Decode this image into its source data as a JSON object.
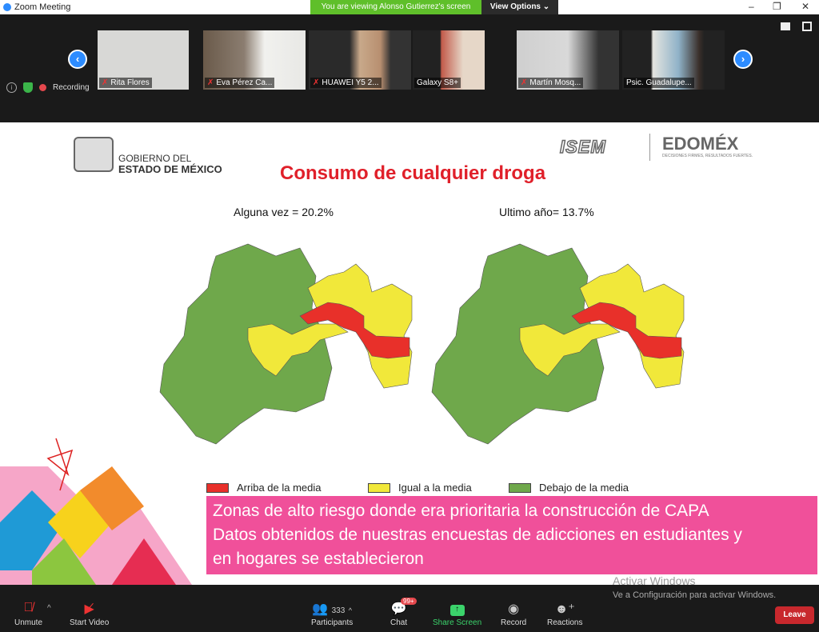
{
  "window": {
    "title": "Zoom Meeting",
    "banner": "You are viewing Alonso Gutierrez's screen",
    "view_options": "View Options ⌄",
    "minimize": "–",
    "restore": "❐",
    "close": "✕"
  },
  "participants_strip": [
    {
      "name": "Rita Flores",
      "muted": true
    },
    {
      "name": "Eva Pérez Ca...",
      "muted": true
    },
    {
      "name": "HUAWEI Y5 2...",
      "muted": true
    },
    {
      "name": "Galaxy S8+",
      "muted": false
    },
    {
      "name": "Martín Mosq...",
      "muted": true
    },
    {
      "name": "Psic. Guadalupe...",
      "muted": false
    }
  ],
  "status": {
    "recording": "Recording"
  },
  "slide": {
    "gov_line1": "GOBIERNO DEL",
    "gov_line2": "ESTADO DE MÉXICO",
    "logo_isem": "ISEM",
    "logo_edomex": "EDOMÉX",
    "edomex_tagline": "DECISIONES FIRMES, RESULTADOS FUERTES.",
    "title": "Consumo de cualquier droga",
    "left_subtitle": "Alguna vez  = 20.2%",
    "right_subtitle": "Ultimo año= 13.7%",
    "legend": [
      {
        "label": "Arriba de la media",
        "color": "#e8302a"
      },
      {
        "label": "Igual a la media",
        "color": "#f1e83a"
      },
      {
        "label": "Debajo de la media",
        "color": "#6fa84b"
      }
    ],
    "caption": [
      "Zonas de alto riesgo donde era prioritaria la construcción de CAPA",
      "Datos obtenidos de nuestras encuestas de adicciones en estudiantes y",
      "en hogares se establecieron"
    ]
  },
  "watermark": {
    "line1": "Activar Windows",
    "line2": "Ve a Configuración para activar Windows."
  },
  "toolbar": {
    "unmute": "Unmute",
    "start_video": "Start Video",
    "participants": "Participants",
    "participants_count": "333",
    "chat": "Chat",
    "chat_badge": "99+",
    "share_screen": "Share Screen",
    "record": "Record",
    "reactions": "Reactions",
    "leave": "Leave"
  }
}
